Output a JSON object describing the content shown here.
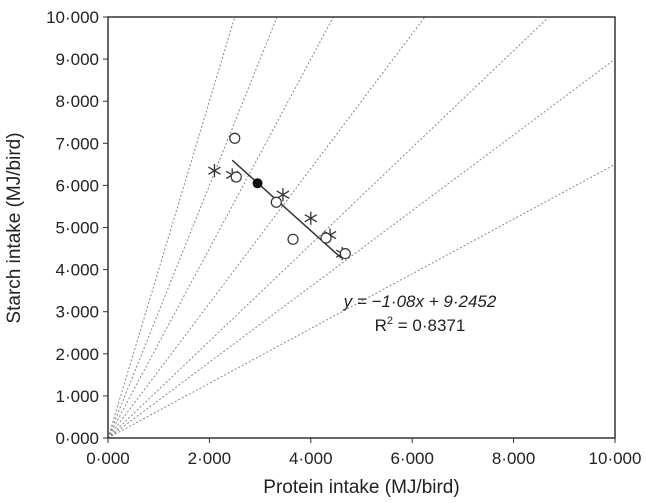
{
  "chart_data": {
    "type": "scatter",
    "title": "",
    "xlabel": "Protein intake (MJ/bird)",
    "ylabel": "Starch intake (MJ/bird)",
    "xlim": [
      0,
      10
    ],
    "ylim": [
      0,
      10
    ],
    "xticks": [
      0,
      2,
      4,
      6,
      8,
      10
    ],
    "yticks": [
      0,
      1,
      2,
      3,
      4,
      5,
      6,
      7,
      8,
      9,
      10
    ],
    "xtick_labels": [
      "0·000",
      "2·000",
      "4·000",
      "6·000",
      "8·000",
      "10·000"
    ],
    "ytick_labels": [
      "0·000",
      "1·000",
      "2·000",
      "3·000",
      "4·000",
      "5·000",
      "6·000",
      "7·000",
      "8·000",
      "9·000",
      "10·000"
    ],
    "grid": false,
    "series": [
      {
        "marker": "asterisk",
        "points": [
          [
            2.1,
            6.35
          ],
          [
            2.45,
            6.25
          ],
          [
            3.45,
            5.78
          ],
          [
            4.0,
            5.22
          ],
          [
            4.38,
            4.82
          ],
          [
            4.62,
            4.38
          ]
        ]
      },
      {
        "marker": "open-circle",
        "points": [
          [
            2.5,
            7.12
          ],
          [
            2.53,
            6.2
          ],
          [
            3.32,
            5.6
          ],
          [
            3.65,
            4.72
          ],
          [
            4.3,
            4.75
          ],
          [
            4.68,
            4.38
          ]
        ]
      },
      {
        "marker": "filled-circle",
        "points": [
          [
            2.95,
            6.05
          ]
        ]
      }
    ],
    "rails": {
      "style": "dotted",
      "slopes": [
        4.0,
        3.0,
        2.25,
        1.6,
        1.15,
        0.9,
        0.65
      ]
    },
    "regression": {
      "slope": -1.08,
      "intercept": 9.2452,
      "x_range": [
        2.45,
        4.6
      ]
    },
    "equation_text": "y = −1·08x + 9·2452",
    "r2_prefix": "R",
    "r2_exponent": "2",
    "r2_value": " = 0·8371"
  }
}
